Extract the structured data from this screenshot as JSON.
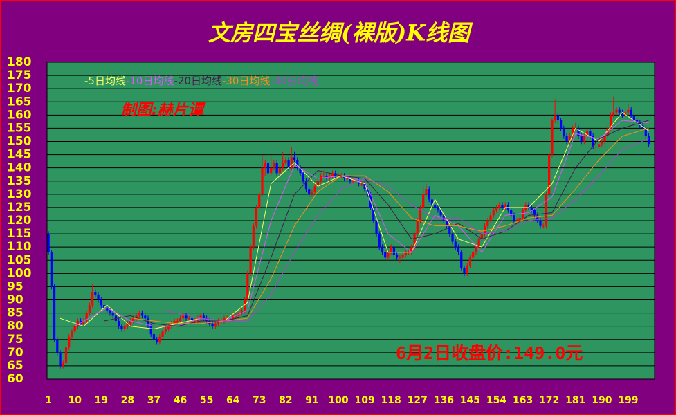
{
  "chart_data": {
    "type": "candlestick",
    "title": "文房四宝丝绸(裸版)K线图",
    "author": "制图:赫片谭",
    "annotation": "6月2日收盘价:149.0元",
    "ylim": [
      60,
      180
    ],
    "yticks": [
      60,
      65,
      70,
      75,
      80,
      85,
      90,
      95,
      100,
      105,
      110,
      115,
      120,
      125,
      130,
      135,
      140,
      145,
      150,
      155,
      160,
      165,
      170,
      175,
      180
    ],
    "xlim": [
      0.5,
      208
    ],
    "xticks": [
      1,
      10,
      19,
      28,
      37,
      46,
      55,
      64,
      73,
      82,
      91,
      100,
      109,
      118,
      127,
      136,
      145,
      154,
      163,
      172,
      181,
      190,
      199
    ],
    "grid": true,
    "up_color": "#ff0000",
    "down_color": "#0000ff",
    "candles": [
      [
        115,
        116,
        107,
        108
      ],
      [
        108,
        109,
        94,
        95
      ],
      [
        95,
        96,
        74,
        75
      ],
      [
        75,
        76,
        69,
        70
      ],
      [
        70,
        71,
        64,
        65
      ],
      [
        65,
        67,
        64,
        66
      ],
      [
        66,
        73,
        65,
        72
      ],
      [
        72,
        77,
        71,
        76
      ],
      [
        76,
        79,
        75,
        78
      ],
      [
        78,
        81,
        77,
        80
      ],
      [
        80,
        83,
        79,
        82
      ],
      [
        82,
        83,
        80,
        81
      ],
      [
        81,
        83,
        80,
        82
      ],
      [
        82,
        86,
        81,
        85
      ],
      [
        85,
        89,
        84,
        88
      ],
      [
        88,
        96,
        87,
        93
      ],
      [
        93,
        94,
        91,
        92
      ],
      [
        92,
        93,
        89,
        90
      ],
      [
        90,
        91,
        87,
        88
      ],
      [
        88,
        89,
        86,
        87
      ],
      [
        87,
        88,
        85,
        86
      ],
      [
        86,
        87,
        84,
        85
      ],
      [
        85,
        86,
        83,
        84
      ],
      [
        84,
        85,
        81,
        82
      ],
      [
        82,
        83,
        79,
        80
      ],
      [
        80,
        81,
        78,
        79
      ],
      [
        79,
        81,
        78,
        80
      ],
      [
        80,
        82,
        79,
        81
      ],
      [
        81,
        83,
        80,
        82
      ],
      [
        82,
        84,
        81,
        83
      ],
      [
        83,
        85,
        82,
        84
      ],
      [
        84,
        86,
        83,
        85
      ],
      [
        85,
        86,
        83,
        84
      ],
      [
        84,
        85,
        82,
        83
      ],
      [
        83,
        84,
        79,
        80
      ],
      [
        80,
        81,
        76,
        77
      ],
      [
        77,
        78,
        74,
        75
      ],
      [
        75,
        76,
        73,
        74
      ],
      [
        74,
        77,
        73,
        76
      ],
      [
        76,
        79,
        75,
        78
      ],
      [
        78,
        80,
        77,
        79
      ],
      [
        79,
        81,
        78,
        80
      ],
      [
        80,
        82,
        79,
        81
      ],
      [
        81,
        83,
        80,
        82
      ],
      [
        82,
        83,
        81,
        82
      ],
      [
        82,
        84,
        81,
        83
      ],
      [
        83,
        85,
        82,
        84
      ],
      [
        84,
        85,
        82,
        83
      ],
      [
        83,
        84,
        82,
        83
      ],
      [
        83,
        84,
        81,
        82
      ],
      [
        82,
        83,
        81,
        82
      ],
      [
        82,
        84,
        81,
        83
      ],
      [
        83,
        85,
        82,
        84
      ],
      [
        84,
        85,
        82,
        83
      ],
      [
        83,
        84,
        81,
        82
      ],
      [
        82,
        83,
        80,
        81
      ],
      [
        81,
        82,
        79,
        80
      ],
      [
        80,
        82,
        79,
        81
      ],
      [
        81,
        83,
        80,
        82
      ],
      [
        82,
        83,
        81,
        82
      ],
      [
        82,
        84,
        81,
        83
      ],
      [
        83,
        84,
        82,
        83
      ],
      [
        83,
        84,
        82,
        83
      ],
      [
        83,
        85,
        82,
        84
      ],
      [
        84,
        85,
        83,
        84
      ],
      [
        84,
        86,
        83,
        85
      ],
      [
        85,
        87,
        84,
        86
      ],
      [
        86,
        91,
        85,
        90
      ],
      [
        90,
        101,
        89,
        100
      ],
      [
        100,
        111,
        99,
        110
      ],
      [
        110,
        119,
        109,
        118
      ],
      [
        118,
        126,
        117,
        125
      ],
      [
        125,
        131,
        124,
        130
      ],
      [
        130,
        145,
        129,
        140
      ],
      [
        140,
        143,
        137,
        142
      ],
      [
        142,
        143,
        137,
        138
      ],
      [
        138,
        145,
        137,
        140
      ],
      [
        140,
        143,
        139,
        142
      ],
      [
        142,
        143,
        137,
        138
      ],
      [
        138,
        141,
        137,
        140
      ],
      [
        140,
        146,
        139,
        142
      ],
      [
        142,
        144,
        141,
        143
      ],
      [
        143,
        144,
        139,
        140
      ],
      [
        140,
        148,
        139,
        144
      ],
      [
        144,
        146,
        142,
        143
      ],
      [
        143,
        144,
        139,
        140
      ],
      [
        140,
        141,
        137,
        138
      ],
      [
        138,
        139,
        134,
        135
      ],
      [
        135,
        136,
        131,
        132
      ],
      [
        132,
        133,
        129,
        130
      ],
      [
        130,
        132,
        129,
        131
      ],
      [
        131,
        134,
        130,
        133
      ],
      [
        133,
        136,
        132,
        135
      ],
      [
        135,
        138,
        134,
        137
      ],
      [
        137,
        139,
        136,
        137
      ],
      [
        137,
        138,
        135,
        136
      ],
      [
        136,
        138,
        135,
        137
      ],
      [
        137,
        139,
        136,
        138
      ],
      [
        138,
        139,
        136,
        137
      ],
      [
        137,
        138,
        136,
        137
      ],
      [
        137,
        138,
        136,
        137
      ],
      [
        137,
        138,
        135,
        136
      ],
      [
        136,
        137,
        135,
        136
      ],
      [
        136,
        137,
        134,
        135
      ],
      [
        135,
        136,
        134,
        135
      ],
      [
        135,
        136,
        134,
        135
      ],
      [
        135,
        136,
        133,
        134
      ],
      [
        134,
        135,
        133,
        134
      ],
      [
        134,
        135,
        131,
        132
      ],
      [
        132,
        133,
        129,
        130
      ],
      [
        130,
        131,
        124,
        125
      ],
      [
        125,
        126,
        119,
        120
      ],
      [
        120,
        121,
        114,
        115
      ],
      [
        115,
        116,
        109,
        110
      ],
      [
        110,
        111,
        107,
        108
      ],
      [
        108,
        109,
        105,
        106
      ],
      [
        106,
        109,
        105,
        108
      ],
      [
        108,
        111,
        107,
        110
      ],
      [
        110,
        111,
        106,
        107
      ],
      [
        107,
        108,
        105,
        106
      ],
      [
        106,
        107,
        104,
        106
      ],
      [
        106,
        108,
        105,
        107
      ],
      [
        107,
        109,
        106,
        108
      ],
      [
        108,
        109,
        107,
        108
      ],
      [
        108,
        111,
        107,
        110
      ],
      [
        110,
        116,
        109,
        115
      ],
      [
        115,
        121,
        114,
        120
      ],
      [
        120,
        126,
        119,
        125
      ],
      [
        125,
        133,
        124,
        130
      ],
      [
        130,
        134,
        129,
        132
      ],
      [
        132,
        133,
        127,
        128
      ],
      [
        128,
        129,
        125,
        126
      ],
      [
        126,
        127,
        124,
        125
      ],
      [
        125,
        126,
        123,
        124
      ],
      [
        124,
        125,
        121,
        122
      ],
      [
        122,
        123,
        119,
        120
      ],
      [
        120,
        121,
        117,
        118
      ],
      [
        118,
        119,
        114,
        115
      ],
      [
        115,
        116,
        111,
        112
      ],
      [
        112,
        113,
        109,
        110
      ],
      [
        110,
        111,
        107,
        108
      ],
      [
        108,
        109,
        101,
        102
      ],
      [
        102,
        103,
        99,
        100
      ],
      [
        100,
        104,
        99,
        103
      ],
      [
        103,
        107,
        102,
        106
      ],
      [
        106,
        109,
        105,
        108
      ],
      [
        108,
        111,
        107,
        110
      ],
      [
        110,
        114,
        109,
        113
      ],
      [
        113,
        116,
        112,
        115
      ],
      [
        115,
        119,
        114,
        118
      ],
      [
        118,
        121,
        117,
        120
      ],
      [
        120,
        123,
        119,
        122
      ],
      [
        122,
        125,
        121,
        124
      ],
      [
        124,
        126,
        123,
        125
      ],
      [
        125,
        127,
        124,
        126
      ],
      [
        126,
        127,
        124,
        125
      ],
      [
        125,
        127,
        124,
        126
      ],
      [
        126,
        127,
        123,
        124
      ],
      [
        124,
        125,
        121,
        122
      ],
      [
        122,
        123,
        119,
        120
      ],
      [
        120,
        121,
        119,
        120
      ],
      [
        120,
        122,
        119,
        121
      ],
      [
        121,
        125,
        120,
        124
      ],
      [
        124,
        127,
        123,
        126
      ],
      [
        126,
        127,
        124,
        125
      ],
      [
        125,
        126,
        123,
        124
      ],
      [
        124,
        125,
        121,
        122
      ],
      [
        122,
        123,
        119,
        120
      ],
      [
        120,
        121,
        117,
        118
      ],
      [
        118,
        119,
        117,
        118
      ],
      [
        118,
        131,
        117,
        130
      ],
      [
        130,
        146,
        129,
        145
      ],
      [
        145,
        159,
        144,
        158
      ],
      [
        158,
        166,
        157,
        160
      ],
      [
        160,
        161,
        157,
        158
      ],
      [
        158,
        159,
        154,
        155
      ],
      [
        155,
        156,
        151,
        152
      ],
      [
        152,
        153,
        149,
        150
      ],
      [
        150,
        153,
        149,
        152
      ],
      [
        152,
        156,
        151,
        155
      ],
      [
        155,
        157,
        154,
        155
      ],
      [
        155,
        156,
        151,
        152
      ],
      [
        152,
        153,
        149,
        150
      ],
      [
        150,
        153,
        149,
        152
      ],
      [
        152,
        155,
        151,
        154
      ],
      [
        154,
        155,
        151,
        152
      ],
      [
        152,
        153,
        147,
        148
      ],
      [
        148,
        149,
        146,
        148
      ],
      [
        148,
        150,
        147,
        149
      ],
      [
        149,
        151,
        148,
        150
      ],
      [
        150,
        153,
        149,
        152
      ],
      [
        152,
        156,
        151,
        155
      ],
      [
        155,
        161,
        154,
        160
      ],
      [
        160,
        167,
        159,
        161
      ],
      [
        161,
        163,
        160,
        162
      ],
      [
        162,
        163,
        160,
        161
      ],
      [
        161,
        162,
        159,
        160
      ],
      [
        160,
        162,
        159,
        161
      ],
      [
        161,
        164,
        160,
        162
      ],
      [
        162,
        163,
        159,
        160
      ],
      [
        160,
        161,
        157,
        158
      ],
      [
        158,
        159,
        156,
        157
      ],
      [
        157,
        158,
        155,
        156
      ],
      [
        156,
        157,
        154,
        155
      ],
      [
        155,
        156,
        151,
        152
      ],
      [
        152,
        153,
        148,
        149
      ]
    ],
    "series": [
      {
        "name": "-5日均线",
        "color": "#ffff66",
        "x": [
          5,
          13,
          21,
          29,
          37,
          45,
          53,
          61,
          69,
          77,
          85,
          93,
          101,
          109,
          117,
          125,
          133,
          141,
          149,
          157,
          165,
          173,
          181,
          189,
          197,
          206
        ],
        "values": [
          83,
          80,
          88,
          80,
          79,
          81,
          83,
          82,
          89,
          134,
          142,
          133,
          137,
          134,
          108,
          108,
          128,
          113,
          110,
          125,
          125,
          134,
          155,
          150,
          161,
          154
        ]
      },
      {
        "name": "-10日均线",
        "color": "#dd55ff",
        "x": [
          10,
          21,
          29,
          37,
          45,
          53,
          61,
          69,
          77,
          85,
          93,
          101,
          109,
          117,
          125,
          133,
          141,
          149,
          157,
          165,
          173,
          181,
          189,
          197,
          206
        ],
        "values": [
          80,
          87,
          82,
          80,
          80,
          83,
          82,
          86,
          120,
          141,
          136,
          137,
          135,
          115,
          108,
          122,
          118,
          108,
          122,
          123,
          129,
          153,
          151,
          158,
          157
        ]
      },
      {
        "name": "-20日均线",
        "color": "#4a1a4a",
        "x": [
          20,
          29,
          37,
          45,
          53,
          61,
          69,
          77,
          85,
          93,
          101,
          109,
          117,
          125,
          133,
          141,
          149,
          157,
          165,
          173,
          181,
          189,
          197,
          206
        ],
        "values": [
          82,
          84,
          81,
          80,
          82,
          82,
          84,
          106,
          130,
          139,
          137,
          136,
          126,
          113,
          115,
          119,
          113,
          116,
          122,
          123,
          140,
          151,
          155,
          158
        ]
      },
      {
        "name": "-30日均线",
        "color": "#ff8c1a",
        "x": [
          30,
          37,
          45,
          53,
          61,
          69,
          77,
          85,
          93,
          101,
          109,
          117,
          125,
          133,
          141,
          149,
          157,
          165,
          173,
          181,
          189,
          197,
          206
        ],
        "values": [
          83,
          82,
          81,
          81,
          82,
          83,
          98,
          118,
          131,
          137,
          137,
          131,
          121,
          118,
          118,
          116,
          118,
          121,
          122,
          132,
          143,
          152,
          155
        ]
      },
      {
        "name": "-40日均线",
        "color": "#b040d0",
        "x": [
          40,
          45,
          53,
          61,
          69,
          77,
          85,
          93,
          101,
          109,
          117,
          125,
          133,
          141,
          149,
          157,
          165,
          173,
          181,
          189,
          197,
          206
        ],
        "values": [
          86,
          85,
          83,
          82,
          82,
          92,
          108,
          122,
          132,
          136,
          133,
          126,
          121,
          121,
          115,
          116,
          120,
          121,
          128,
          137,
          147,
          151
        ]
      }
    ]
  }
}
